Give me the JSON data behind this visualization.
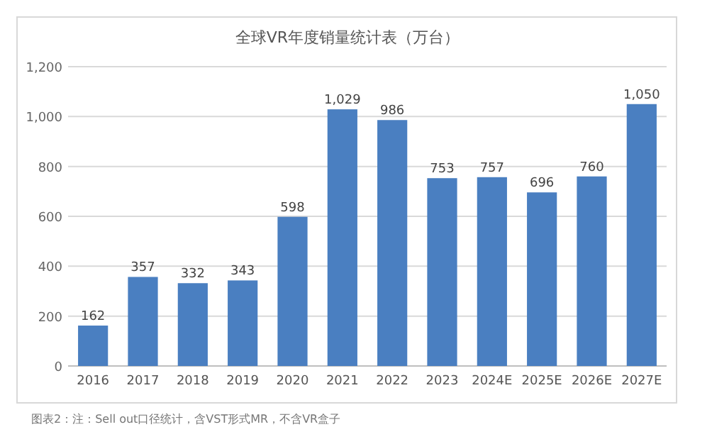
{
  "chart_data": {
    "type": "bar",
    "title": "全球VR年度销量统计表（万台）",
    "categories": [
      "2016",
      "2017",
      "2018",
      "2019",
      "2020",
      "2021",
      "2022",
      "2023",
      "2024E",
      "2025E",
      "2026E",
      "2027E"
    ],
    "values": [
      162,
      357,
      332,
      343,
      598,
      1029,
      986,
      753,
      757,
      696,
      760,
      1050
    ],
    "value_labels": [
      "162",
      "357",
      "332",
      "343",
      "598",
      "1,029",
      "986",
      "753",
      "757",
      "696",
      "760",
      "1,050"
    ],
    "color": "#4a7fc1",
    "ylim": [
      0,
      1200
    ],
    "yticks": [
      0,
      200,
      400,
      600,
      800,
      {
        "value": 1000,
        "label": "1,000"
      },
      {
        "value": 1200,
        "label": "1,200"
      }
    ],
    "grid": "y",
    "annotations": [
      "图表2：注：Sell out口径统计，含VST形式MR，不含VR盒子"
    ]
  }
}
